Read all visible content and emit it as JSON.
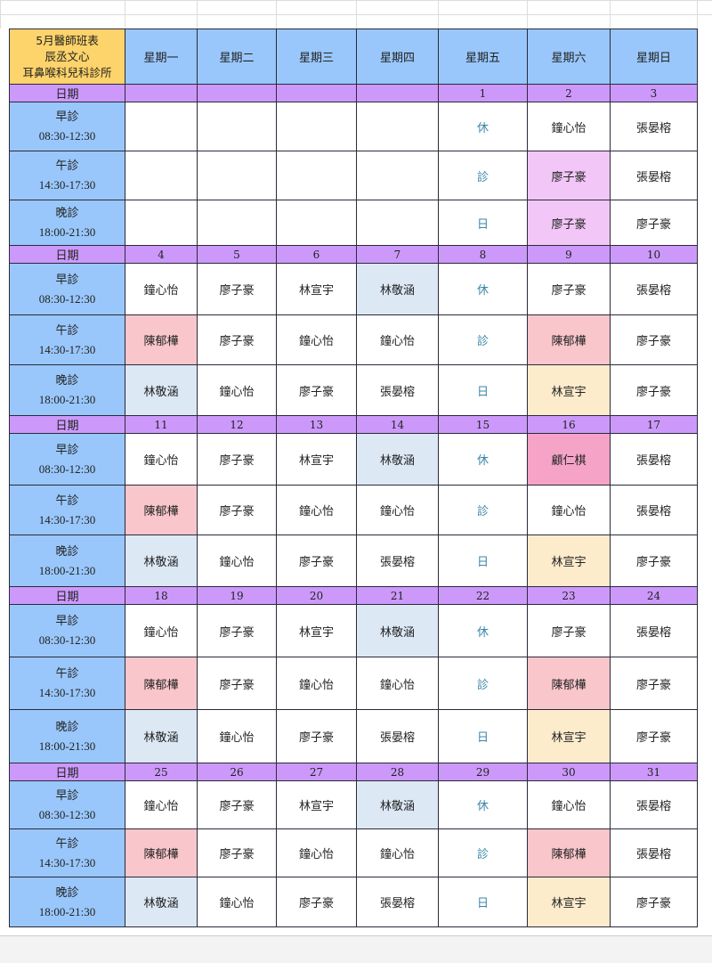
{
  "title_lines": [
    "5月醫師班表",
    "辰丞文心",
    "耳鼻喉科兒科診所"
  ],
  "weekdays": [
    "星期一",
    "星期二",
    "星期三",
    "星期四",
    "星期五",
    "星期六",
    "星期日"
  ],
  "date_label": "日期",
  "shifts": [
    {
      "name": "早診",
      "time": "08:30-12:30"
    },
    {
      "name": "午診",
      "time": "14:30-17:30"
    },
    {
      "name": "晚診",
      "time": "18:00-21:30"
    }
  ],
  "colors": {
    "pink": "#f9c6cb",
    "blue": "#dde8f5",
    "lavender": "#f2c6f7",
    "yellow": "#fdeccc",
    "rose": "#f5a3c7",
    "closed_text": "#3a86a8"
  },
  "weeks": [
    {
      "dates": [
        "",
        "",
        "",
        "",
        "1",
        "2",
        "3"
      ],
      "rows": [
        [
          {
            "t": ""
          },
          {
            "t": ""
          },
          {
            "t": ""
          },
          {
            "t": ""
          },
          {
            "t": "休",
            "x": 1
          },
          {
            "t": "鐘心怡"
          },
          {
            "t": "張晏榕"
          }
        ],
        [
          {
            "t": ""
          },
          {
            "t": ""
          },
          {
            "t": ""
          },
          {
            "t": ""
          },
          {
            "t": "診",
            "x": 1
          },
          {
            "t": "廖子豪",
            "c": "lavender"
          },
          {
            "t": "張晏榕"
          }
        ],
        [
          {
            "t": ""
          },
          {
            "t": ""
          },
          {
            "t": ""
          },
          {
            "t": ""
          },
          {
            "t": "日",
            "x": 1
          },
          {
            "t": "廖子豪",
            "c": "lavender"
          },
          {
            "t": "廖子豪"
          }
        ]
      ]
    },
    {
      "dates": [
        "4",
        "5",
        "6",
        "7",
        "8",
        "9",
        "10"
      ],
      "rows": [
        [
          {
            "t": "鐘心怡"
          },
          {
            "t": "廖子豪"
          },
          {
            "t": "林宣宇"
          },
          {
            "t": "林敬涵",
            "c": "blue"
          },
          {
            "t": "休",
            "x": 1
          },
          {
            "t": "廖子豪"
          },
          {
            "t": "張晏榕"
          }
        ],
        [
          {
            "t": "陳郁樺",
            "c": "pink"
          },
          {
            "t": "廖子豪"
          },
          {
            "t": "鐘心怡"
          },
          {
            "t": "鐘心怡"
          },
          {
            "t": "診",
            "x": 1
          },
          {
            "t": "陳郁樺",
            "c": "pink"
          },
          {
            "t": "廖子豪"
          }
        ],
        [
          {
            "t": "林敬涵",
            "c": "blue"
          },
          {
            "t": "鐘心怡"
          },
          {
            "t": "廖子豪"
          },
          {
            "t": "張晏榕"
          },
          {
            "t": "日",
            "x": 1
          },
          {
            "t": "林宣宇",
            "c": "yellow"
          },
          {
            "t": "廖子豪"
          }
        ]
      ]
    },
    {
      "dates": [
        "11",
        "12",
        "13",
        "14",
        "15",
        "16",
        "17"
      ],
      "rows": [
        [
          {
            "t": "鐘心怡"
          },
          {
            "t": "廖子豪"
          },
          {
            "t": "林宣宇"
          },
          {
            "t": "林敬涵",
            "c": "blue"
          },
          {
            "t": "休",
            "x": 1
          },
          {
            "t": "顧仁棋",
            "c": "rose"
          },
          {
            "t": "張晏榕"
          }
        ],
        [
          {
            "t": "陳郁樺",
            "c": "pink"
          },
          {
            "t": "廖子豪"
          },
          {
            "t": "鐘心怡"
          },
          {
            "t": "鐘心怡"
          },
          {
            "t": "診",
            "x": 1
          },
          {
            "t": "鐘心怡"
          },
          {
            "t": "張晏榕"
          }
        ],
        [
          {
            "t": "林敬涵",
            "c": "blue"
          },
          {
            "t": "鐘心怡"
          },
          {
            "t": "廖子豪"
          },
          {
            "t": "張晏榕"
          },
          {
            "t": "日",
            "x": 1
          },
          {
            "t": "林宣宇",
            "c": "yellow"
          },
          {
            "t": "廖子豪"
          }
        ]
      ]
    },
    {
      "dates": [
        "18",
        "19",
        "20",
        "21",
        "22",
        "23",
        "24"
      ],
      "rows": [
        [
          {
            "t": "鐘心怡"
          },
          {
            "t": "廖子豪"
          },
          {
            "t": "林宣宇"
          },
          {
            "t": "林敬涵",
            "c": "blue"
          },
          {
            "t": "休",
            "x": 1
          },
          {
            "t": "廖子豪"
          },
          {
            "t": "張晏榕"
          }
        ],
        [
          {
            "t": "陳郁樺",
            "c": "pink"
          },
          {
            "t": "廖子豪"
          },
          {
            "t": "鐘心怡"
          },
          {
            "t": "鐘心怡"
          },
          {
            "t": "診",
            "x": 1
          },
          {
            "t": "陳郁樺",
            "c": "pink"
          },
          {
            "t": "廖子豪"
          }
        ],
        [
          {
            "t": "林敬涵",
            "c": "blue"
          },
          {
            "t": "鐘心怡"
          },
          {
            "t": "廖子豪"
          },
          {
            "t": "張晏榕"
          },
          {
            "t": "日",
            "x": 1
          },
          {
            "t": "林宣宇",
            "c": "yellow"
          },
          {
            "t": "廖子豪"
          }
        ]
      ]
    },
    {
      "dates": [
        "25",
        "26",
        "27",
        "28",
        "29",
        "30",
        "31"
      ],
      "rows": [
        [
          {
            "t": "鐘心怡"
          },
          {
            "t": "廖子豪"
          },
          {
            "t": "林宣宇"
          },
          {
            "t": "林敬涵",
            "c": "blue"
          },
          {
            "t": "休",
            "x": 1
          },
          {
            "t": "鐘心怡"
          },
          {
            "t": "張晏榕"
          }
        ],
        [
          {
            "t": "陳郁樺",
            "c": "pink"
          },
          {
            "t": "廖子豪"
          },
          {
            "t": "鐘心怡"
          },
          {
            "t": "鐘心怡"
          },
          {
            "t": "診",
            "x": 1
          },
          {
            "t": "陳郁樺",
            "c": "pink"
          },
          {
            "t": "張晏榕"
          }
        ],
        [
          {
            "t": "林敬涵",
            "c": "blue"
          },
          {
            "t": "鐘心怡"
          },
          {
            "t": "廖子豪"
          },
          {
            "t": "張晏榕"
          },
          {
            "t": "日",
            "x": 1
          },
          {
            "t": "林宣宇",
            "c": "yellow"
          },
          {
            "t": "廖子豪"
          }
        ]
      ]
    }
  ]
}
